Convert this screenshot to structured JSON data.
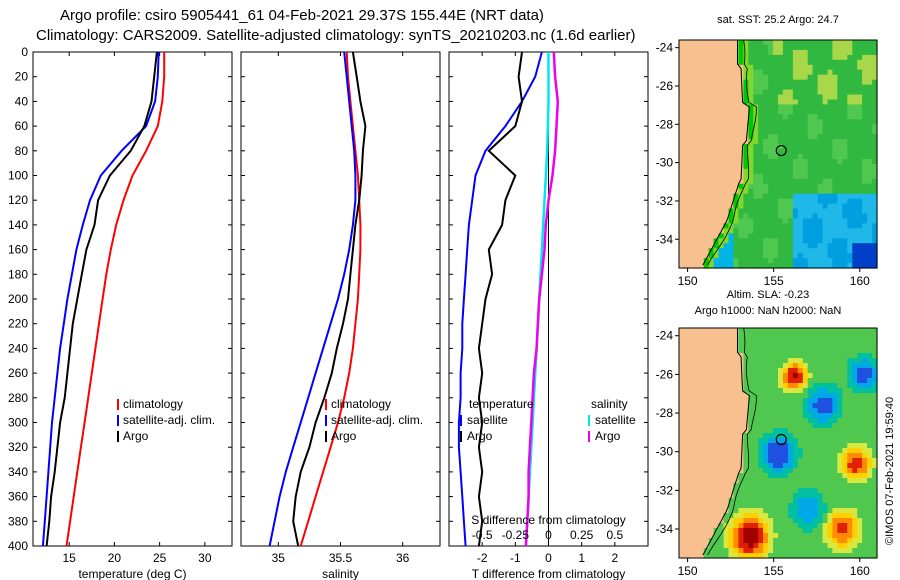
{
  "header": {
    "line1": "Argo profile: csiro 5905441_61 04-Feb-2021 29.37S 155.44E (NRT data)",
    "line2": "Climatology: CARS2009. Satellite-adjusted climatology: synTS_20210203.nc (1.6d earlier)"
  },
  "colors": {
    "climatology": "#ff0000",
    "satellite": "#0000ff",
    "argo": "#000000",
    "sat_salinity": "#00e5ee",
    "argo_salinity": "#ee00ee",
    "land": "#f7c08e"
  },
  "chart_data": [
    {
      "type": "line",
      "id": "temperature",
      "xlabel": "temperature (deg C)",
      "ylabel": "depth",
      "xlim": [
        11,
        33
      ],
      "ylim": [
        400,
        0
      ],
      "xticks": [
        15,
        20,
        25,
        30
      ],
      "yticks": [
        0,
        20,
        40,
        60,
        80,
        100,
        120,
        140,
        160,
        180,
        200,
        220,
        240,
        260,
        280,
        300,
        320,
        340,
        360,
        380,
        400
      ],
      "legend_position": "bottom-center",
      "series": [
        {
          "name": "climatology",
          "color": "#ff0000",
          "points": [
            [
              25.5,
              0
            ],
            [
              25.5,
              20
            ],
            [
              25.3,
              40
            ],
            [
              24.8,
              60
            ],
            [
              23.5,
              80
            ],
            [
              22.0,
              100
            ],
            [
              21.0,
              120
            ],
            [
              20.2,
              140
            ],
            [
              19.6,
              160
            ],
            [
              19.1,
              180
            ],
            [
              18.7,
              200
            ],
            [
              18.3,
              220
            ],
            [
              17.9,
              240
            ],
            [
              17.5,
              260
            ],
            [
              17.1,
              280
            ],
            [
              16.7,
              300
            ],
            [
              16.3,
              320
            ],
            [
              15.9,
              340
            ],
            [
              15.5,
              360
            ],
            [
              15.1,
              380
            ],
            [
              14.7,
              400
            ]
          ]
        },
        {
          "name": "satellite-adj. clim.",
          "color": "#0000ff",
          "points": [
            [
              24.9,
              0
            ],
            [
              24.8,
              20
            ],
            [
              24.5,
              40
            ],
            [
              23.5,
              60
            ],
            [
              20.8,
              80
            ],
            [
              18.5,
              100
            ],
            [
              17.3,
              120
            ],
            [
              16.5,
              140
            ],
            [
              15.8,
              160
            ],
            [
              15.3,
              180
            ],
            [
              14.8,
              200
            ],
            [
              14.4,
              220
            ],
            [
              14.0,
              240
            ],
            [
              13.7,
              260
            ],
            [
              13.4,
              280
            ],
            [
              13.1,
              300
            ],
            [
              12.9,
              320
            ],
            [
              12.7,
              340
            ],
            [
              12.5,
              360
            ],
            [
              12.3,
              380
            ],
            [
              12.1,
              400
            ]
          ]
        },
        {
          "name": "Argo",
          "color": "#000000",
          "points": [
            [
              24.7,
              0
            ],
            [
              24.4,
              20
            ],
            [
              24.1,
              40
            ],
            [
              23.3,
              60
            ],
            [
              21.8,
              80
            ],
            [
              19.5,
              100
            ],
            [
              18.2,
              120
            ],
            [
              17.8,
              140
            ],
            [
              16.9,
              160
            ],
            [
              16.4,
              180
            ],
            [
              15.9,
              200
            ],
            [
              15.4,
              220
            ],
            [
              15.1,
              240
            ],
            [
              14.8,
              260
            ],
            [
              14.5,
              280
            ],
            [
              14.0,
              300
            ],
            [
              13.7,
              320
            ],
            [
              13.4,
              340
            ],
            [
              13.0,
              360
            ],
            [
              12.8,
              380
            ],
            [
              12.5,
              400
            ]
          ]
        }
      ],
      "legend": [
        "climatology",
        "satellite-adj. clim.",
        "Argo"
      ]
    },
    {
      "type": "line",
      "id": "salinity",
      "xlabel": "salinity",
      "ylabel": "depth",
      "xlim": [
        34.7,
        36.3
      ],
      "ylim": [
        400,
        0
      ],
      "xticks": [
        35,
        35.5,
        36
      ],
      "xtick_labels": [
        "35",
        "35.5",
        "36"
      ],
      "legend_position": "bottom-center",
      "series": [
        {
          "name": "climatology",
          "color": "#ff0000",
          "points": [
            [
              35.55,
              0
            ],
            [
              35.56,
              20
            ],
            [
              35.58,
              40
            ],
            [
              35.6,
              60
            ],
            [
              35.62,
              80
            ],
            [
              35.64,
              100
            ],
            [
              35.65,
              120
            ],
            [
              35.66,
              140
            ],
            [
              35.66,
              160
            ],
            [
              35.65,
              180
            ],
            [
              35.64,
              200
            ],
            [
              35.62,
              220
            ],
            [
              35.6,
              240
            ],
            [
              35.57,
              260
            ],
            [
              35.53,
              280
            ],
            [
              35.48,
              300
            ],
            [
              35.42,
              320
            ],
            [
              35.36,
              340
            ],
            [
              35.3,
              360
            ],
            [
              35.24,
              380
            ],
            [
              35.18,
              400
            ]
          ]
        },
        {
          "name": "satellite-adj. clim.",
          "color": "#0000ff",
          "points": [
            [
              35.53,
              0
            ],
            [
              35.55,
              20
            ],
            [
              35.57,
              40
            ],
            [
              35.59,
              60
            ],
            [
              35.61,
              80
            ],
            [
              35.62,
              100
            ],
            [
              35.62,
              120
            ],
            [
              35.6,
              140
            ],
            [
              35.57,
              160
            ],
            [
              35.53,
              180
            ],
            [
              35.48,
              200
            ],
            [
              35.42,
              220
            ],
            [
              35.36,
              240
            ],
            [
              35.3,
              260
            ],
            [
              35.24,
              280
            ],
            [
              35.18,
              300
            ],
            [
              35.12,
              320
            ],
            [
              35.06,
              340
            ],
            [
              35.01,
              360
            ],
            [
              34.97,
              380
            ],
            [
              34.93,
              400
            ]
          ]
        },
        {
          "name": "Argo",
          "color": "#000000",
          "points": [
            [
              35.6,
              0
            ],
            [
              35.63,
              20
            ],
            [
              35.66,
              40
            ],
            [
              35.7,
              60
            ],
            [
              35.68,
              80
            ],
            [
              35.67,
              100
            ],
            [
              35.65,
              120
            ],
            [
              35.62,
              140
            ],
            [
              35.6,
              160
            ],
            [
              35.58,
              180
            ],
            [
              35.56,
              200
            ],
            [
              35.52,
              220
            ],
            [
              35.47,
              240
            ],
            [
              35.43,
              260
            ],
            [
              35.37,
              280
            ],
            [
              35.3,
              300
            ],
            [
              35.25,
              320
            ],
            [
              35.18,
              340
            ],
            [
              35.14,
              360
            ],
            [
              35.12,
              380
            ],
            [
              35.16,
              400
            ]
          ]
        }
      ],
      "legend": [
        "climatology",
        "satellite-adj. clim.",
        "Argo"
      ]
    },
    {
      "type": "line",
      "id": "difference",
      "xlabel": "T difference from climatology",
      "top_xlabel": "S difference from climatology",
      "xlim": [
        -3,
        3
      ],
      "top_xlim": [
        -0.75,
        0.75
      ],
      "ylim": [
        400,
        0
      ],
      "xticks": [
        -2,
        -1,
        0,
        1,
        2
      ],
      "top_xticks": [
        -0.5,
        -0.25,
        0,
        0.25,
        0.5
      ],
      "top_xtick_labels": [
        "-0.5",
        "-0.25",
        "0",
        "0.25",
        "0.5"
      ],
      "legend_titles": [
        "temperature",
        "salinity"
      ],
      "series": [
        {
          "name": "T satellite",
          "group": "temperature",
          "color": "#0000ff",
          "points": [
            [
              -0.2,
              0
            ],
            [
              -0.4,
              20
            ],
            [
              -0.8,
              40
            ],
            [
              -1.3,
              60
            ],
            [
              -1.9,
              80
            ],
            [
              -2.2,
              100
            ],
            [
              -2.3,
              120
            ],
            [
              -2.4,
              140
            ],
            [
              -2.45,
              160
            ],
            [
              -2.5,
              180
            ],
            [
              -2.55,
              200
            ],
            [
              -2.6,
              220
            ],
            [
              -2.6,
              240
            ],
            [
              -2.65,
              260
            ],
            [
              -2.65,
              280
            ],
            [
              -2.7,
              300
            ],
            [
              -2.7,
              320
            ],
            [
              -2.65,
              340
            ],
            [
              -2.6,
              360
            ],
            [
              -2.55,
              380
            ],
            [
              -2.5,
              400
            ]
          ]
        },
        {
          "name": "T Argo",
          "group": "temperature",
          "color": "#000000",
          "points": [
            [
              -0.8,
              0
            ],
            [
              -0.9,
              20
            ],
            [
              -0.8,
              40
            ],
            [
              -1.0,
              60
            ],
            [
              -1.8,
              80
            ],
            [
              -1.0,
              100
            ],
            [
              -1.3,
              120
            ],
            [
              -1.4,
              140
            ],
            [
              -1.8,
              160
            ],
            [
              -1.7,
              180
            ],
            [
              -1.9,
              200
            ],
            [
              -2.0,
              220
            ],
            [
              -2.1,
              240
            ],
            [
              -2.0,
              260
            ],
            [
              -2.1,
              280
            ],
            [
              -2.0,
              300
            ],
            [
              -2.1,
              320
            ],
            [
              -2.0,
              340
            ],
            [
              -2.1,
              360
            ],
            [
              -2.0,
              380
            ],
            [
              -2.1,
              400
            ]
          ]
        },
        {
          "name": "S satellite",
          "group": "salinity",
          "color": "#00e5ee",
          "points": [
            [
              0.0,
              0
            ],
            [
              0.0,
              40
            ],
            [
              -0.01,
              80
            ],
            [
              -0.03,
              120
            ],
            [
              -0.05,
              160
            ],
            [
              -0.07,
              200
            ],
            [
              -0.09,
              240
            ],
            [
              -0.11,
              280
            ],
            [
              -0.13,
              320
            ],
            [
              -0.15,
              360
            ],
            [
              -0.17,
              400
            ]
          ]
        },
        {
          "name": "S Argo",
          "group": "salinity",
          "color": "#ee00ee",
          "points": [
            [
              0.04,
              0
            ],
            [
              0.05,
              20
            ],
            [
              0.07,
              40
            ],
            [
              0.06,
              60
            ],
            [
              0.05,
              80
            ],
            [
              0.03,
              100
            ],
            [
              0.0,
              120
            ],
            [
              -0.02,
              140
            ],
            [
              -0.03,
              160
            ],
            [
              -0.05,
              180
            ],
            [
              -0.07,
              200
            ],
            [
              -0.08,
              220
            ],
            [
              -0.09,
              240
            ],
            [
              -0.11,
              260
            ],
            [
              -0.12,
              280
            ],
            [
              -0.13,
              300
            ],
            [
              -0.14,
              320
            ],
            [
              -0.15,
              340
            ],
            [
              -0.15,
              360
            ],
            [
              -0.16,
              380
            ],
            [
              -0.17,
              400
            ]
          ]
        }
      ],
      "legend_temperature": [
        "satellite",
        "Argo"
      ],
      "legend_salinity": [
        "satellite",
        "Argo"
      ]
    },
    {
      "type": "heatmap",
      "id": "sst_map",
      "title": "sat. SST: 25.2 Argo: 24.7",
      "xlim": [
        149.5,
        161
      ],
      "ylim": [
        -35.5,
        -23.6
      ],
      "xticks": [
        150,
        155,
        160
      ],
      "yticks": [
        -24,
        -26,
        -28,
        -30,
        -32,
        -34
      ],
      "argo_position": [
        155.44,
        -29.37
      ]
    },
    {
      "type": "heatmap",
      "id": "sla_map",
      "title": "Altim. SLA: -0.23",
      "subtitle": "Argo h1000: NaN h2000: NaN",
      "xlim": [
        149.5,
        161
      ],
      "ylim": [
        -35.5,
        -23.6
      ],
      "xticks": [
        150,
        155,
        160
      ],
      "yticks": [
        -24,
        -26,
        -28,
        -30,
        -32,
        -34
      ],
      "argo_position": [
        155.44,
        -29.37
      ]
    }
  ],
  "credit": "©IMOS 07-Feb-2021 19:59:40"
}
